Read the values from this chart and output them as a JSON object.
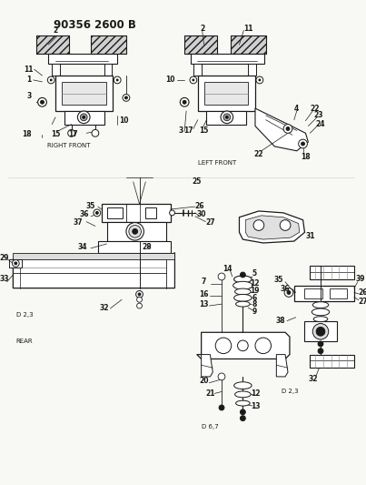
{
  "title": "90356 2600 B",
  "bg_color": "#f5f5f0",
  "fg_color": "#1a1a1a",
  "fig_width": 4.03,
  "fig_height": 5.33,
  "dpi": 100,
  "right_front_label": "RIGHT FRONT",
  "left_front_label": "LEFT FRONT",
  "rear_label": "REAR",
  "d23a_label": "D 2,3",
  "d67_label": "D 6,7",
  "d23b_label": "D 2,3",
  "gray": "#888888",
  "light_gray": "#cccccc",
  "mid_gray": "#aaaaaa"
}
